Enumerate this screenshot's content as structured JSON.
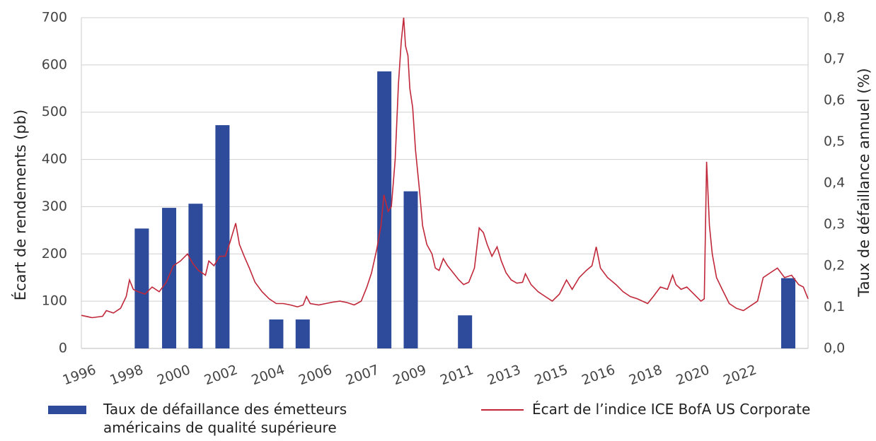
{
  "chart_data": {
    "type": "bar+line",
    "y_label": "Écart de rendements (pb)",
    "y2_label": "Taux de défaillance annuel (%)",
    "xlim": [
      0,
      15.4
    ],
    "xticks": [
      {
        "value": 0,
        "label": "1996"
      },
      {
        "value": 1,
        "label": "1998"
      },
      {
        "value": 2,
        "label": "2000"
      },
      {
        "value": 3,
        "label": "2002"
      },
      {
        "value": 4,
        "label": "2004"
      },
      {
        "value": 5,
        "label": "2006"
      },
      {
        "value": 6,
        "label": "2007"
      },
      {
        "value": 7,
        "label": "2009"
      },
      {
        "value": 8,
        "label": "2011"
      },
      {
        "value": 9,
        "label": "2013"
      },
      {
        "value": 10,
        "label": "2015"
      },
      {
        "value": 11,
        "label": "2016"
      },
      {
        "value": 12,
        "label": "2018"
      },
      {
        "value": 13,
        "label": "2020"
      },
      {
        "value": 14,
        "label": "2022"
      }
    ],
    "ylim": [
      0,
      700
    ],
    "yticks": [
      0,
      100,
      200,
      300,
      400,
      500,
      600,
      700
    ],
    "y2lim": [
      0,
      0.8
    ],
    "y2ticks": [
      {
        "value": 0,
        "label": "0,0"
      },
      {
        "value": 0.1,
        "label": "0,1"
      },
      {
        "value": 0.2,
        "label": "0,2"
      },
      {
        "value": 0.3,
        "label": "0,3"
      },
      {
        "value": 0.4,
        "label": "0,4"
      },
      {
        "value": 0.5,
        "label": "0,5"
      },
      {
        "value": 0.6,
        "label": "0,6"
      },
      {
        "value": 0.7,
        "label": "0,7"
      },
      {
        "value": 0.8,
        "label": "0,8"
      }
    ],
    "grid": true,
    "series": [
      {
        "name": "Taux de défaillance des émetteurs américains de qualité supérieure",
        "type": "bar",
        "axis": "y2",
        "color": "#2e4b9b",
        "x": [
          1.28,
          1.86,
          2.42,
          2.99,
          4.13,
          4.69,
          6.42,
          6.98,
          8.13,
          14.98
        ],
        "values": [
          0.29,
          0.34,
          0.35,
          0.54,
          0.07,
          0.07,
          0.67,
          0.38,
          0.08,
          0.17
        ]
      },
      {
        "name": "Écart de l’indice ICE BofA US Corporate",
        "type": "line",
        "color": "#c0283a",
        "x": [
          0,
          0.23,
          0.45,
          0.53,
          0.68,
          0.83,
          0.95,
          1.02,
          1.1,
          1.2,
          1.35,
          1.5,
          1.65,
          1.8,
          1.95,
          2.1,
          2.25,
          2.36,
          2.48,
          2.63,
          2.7,
          2.81,
          2.93,
          3.05,
          3.15,
          3.27,
          3.35,
          3.45,
          3.56,
          3.68,
          3.83,
          3.98,
          4.13,
          4.28,
          4.43,
          4.58,
          4.7,
          4.77,
          4.85,
          5.03,
          5.18,
          5.33,
          5.48,
          5.63,
          5.78,
          5.93,
          6.05,
          6.15,
          6.26,
          6.35,
          6.41,
          6.5,
          6.57,
          6.65,
          6.72,
          6.78,
          6.83,
          6.87,
          6.92,
          6.96,
          7.02,
          7.08,
          7.16,
          7.23,
          7.32,
          7.43,
          7.5,
          7.58,
          7.67,
          7.76,
          7.88,
          8,
          8.1,
          8.21,
          8.33,
          8.43,
          8.52,
          8.6,
          8.7,
          8.81,
          8.9,
          9,
          9.11,
          9.23,
          9.35,
          9.41,
          9.53,
          9.68,
          9.83,
          9.98,
          10.13,
          10.28,
          10.4,
          10.55,
          10.7,
          10.82,
          10.91,
          11,
          11.15,
          11.33,
          11.48,
          11.63,
          11.78,
          12,
          12.12,
          12.27,
          12.42,
          12.53,
          12.6,
          12.71,
          12.83,
          12.98,
          13.13,
          13.2,
          13.25,
          13.31,
          13.37,
          13.46,
          13.58,
          13.73,
          13.88,
          14.03,
          14.18,
          14.33,
          14.45,
          14.6,
          14.75,
          14.9,
          15.05,
          15.2,
          15.3,
          15.4
        ],
        "values": [
          70,
          65,
          68,
          80,
          75,
          85,
          110,
          145,
          125,
          120,
          115,
          130,
          120,
          140,
          175,
          185,
          200,
          180,
          165,
          155,
          185,
          175,
          195,
          195,
          225,
          265,
          220,
          195,
          170,
          140,
          120,
          105,
          95,
          95,
          92,
          88,
          92,
          110,
          95,
          92,
          95,
          98,
          100,
          97,
          92,
          100,
          130,
          160,
          210,
          260,
          325,
          290,
          300,
          400,
          560,
          650,
          700,
          640,
          620,
          550,
          510,
          420,
          340,
          260,
          220,
          200,
          170,
          165,
          190,
          175,
          160,
          145,
          135,
          140,
          170,
          255,
          245,
          220,
          195,
          215,
          185,
          160,
          145,
          138,
          140,
          158,
          135,
          120,
          110,
          100,
          115,
          145,
          125,
          150,
          165,
          175,
          215,
          170,
          150,
          135,
          120,
          110,
          105,
          95,
          110,
          130,
          125,
          155,
          135,
          125,
          130,
          115,
          100,
          105,
          395,
          260,
          200,
          150,
          125,
          95,
          85,
          80,
          90,
          100,
          150,
          160,
          170,
          150,
          155,
          135,
          130,
          105
        ]
      }
    ]
  }
}
